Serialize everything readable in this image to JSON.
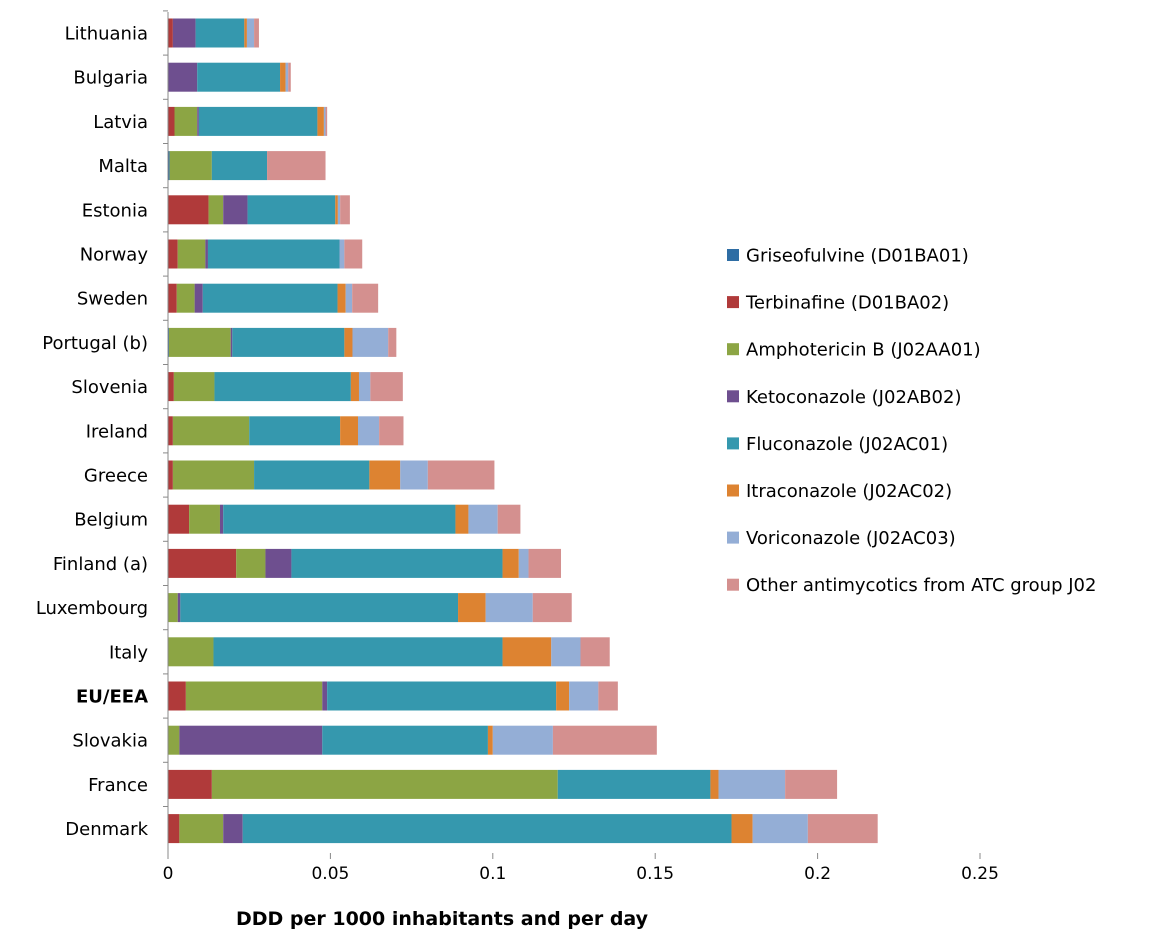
{
  "chart_data": {
    "type": "bar",
    "orientation": "horizontal",
    "stacked": true,
    "xlabel": "DDD per 1000 inhabitants and per day",
    "ylabel": "",
    "xlim": [
      0,
      0.25
    ],
    "xticks": [
      0,
      0.05,
      0.1,
      0.15,
      0.2,
      0.25
    ],
    "xtick_labels": [
      "0",
      "0.05",
      "0.1",
      "0.15",
      "0.2",
      "0.25"
    ],
    "grid": false,
    "legend_position": "right",
    "bold_categories": [
      "EU/EEA"
    ],
    "categories": [
      "Lithuania",
      "Bulgaria",
      "Latvia",
      "Malta",
      "Estonia",
      "Norway",
      "Sweden",
      "Portugal (b)",
      "Slovenia",
      "Ireland",
      "Greece",
      "Belgium",
      "Finland (a)",
      "Luxembourg",
      "Italy",
      "EU/EEA",
      "Slovakia",
      "France",
      "Denmark"
    ],
    "series": [
      {
        "name": "Griseofulvine (D01BA01)",
        "color": "#2E6DA4",
        "values": [
          0,
          0,
          0,
          0.0005,
          0,
          0,
          0,
          0.0003,
          0,
          0,
          0,
          0,
          0,
          0,
          0,
          0,
          0,
          0,
          0
        ]
      },
      {
        "name": "Terbinafine (D01BA02)",
        "color": "#B03A3A",
        "values": [
          0.0015,
          0,
          0.002,
          0,
          0.0125,
          0.003,
          0.0027,
          0,
          0.0018,
          0.0015,
          0.0015,
          0.0065,
          0.021,
          0,
          0,
          0.0055,
          0,
          0.0135,
          0.0035
        ]
      },
      {
        "name": "Amphotericin B (J02AA01)",
        "color": "#8CA544",
        "values": [
          0,
          0,
          0.007,
          0.013,
          0.0045,
          0.0085,
          0.0055,
          0.019,
          0.0125,
          0.0235,
          0.025,
          0.0095,
          0.009,
          0.003,
          0.014,
          0.042,
          0.0035,
          0.1065,
          0.0135
        ]
      },
      {
        "name": "Ketoconazole (J02AB02)",
        "color": "#6E4F8F",
        "values": [
          0.007,
          0.009,
          0.0005,
          0,
          0.0075,
          0.0008,
          0.0025,
          0.0005,
          0,
          0,
          0,
          0.001,
          0.008,
          0.0008,
          0,
          0.0015,
          0.044,
          0,
          0.006
        ]
      },
      {
        "name": "Fluconazole (J02AC01)",
        "color": "#3598AE",
        "values": [
          0.015,
          0.0255,
          0.0365,
          0.017,
          0.027,
          0.0405,
          0.0415,
          0.0345,
          0.042,
          0.028,
          0.0355,
          0.0715,
          0.065,
          0.0855,
          0.089,
          0.0705,
          0.051,
          0.047,
          0.1505
        ]
      },
      {
        "name": "Itraconazole (J02AC02)",
        "color": "#DD8331",
        "values": [
          0.0008,
          0.0017,
          0.002,
          0,
          0.0008,
          0,
          0.0025,
          0.0025,
          0.0025,
          0.0055,
          0.0095,
          0.004,
          0.005,
          0.0085,
          0.015,
          0.004,
          0.0015,
          0.0025,
          0.0065
        ]
      },
      {
        "name": "Voriconazole (J02AC03)",
        "color": "#94AED6",
        "values": [
          0.0022,
          0.0008,
          0.0005,
          0,
          0.0007,
          0.0015,
          0.002,
          0.011,
          0.0035,
          0.0065,
          0.0085,
          0.009,
          0.003,
          0.0145,
          0.009,
          0.009,
          0.0185,
          0.0205,
          0.017
        ]
      },
      {
        "name": "Other antimycotics from ATC group J02",
        "color": "#D4908F",
        "values": [
          0.0015,
          0.0008,
          0.0005,
          0.018,
          0.003,
          0.0055,
          0.008,
          0.0025,
          0.01,
          0.0075,
          0.0205,
          0.007,
          0.01,
          0.012,
          0.009,
          0.006,
          0.032,
          0.016,
          0.0215
        ]
      }
    ]
  }
}
